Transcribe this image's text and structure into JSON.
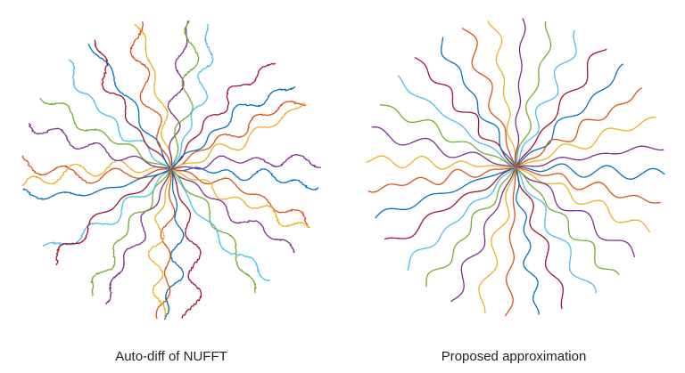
{
  "colors": [
    "#0072BD",
    "#D95319",
    "#EDB120",
    "#7E2F8E",
    "#77AC30",
    "#4DBEEE",
    "#A2142F"
  ],
  "panels": [
    {
      "caption": "Auto-diff of NUFFT",
      "spokes": 32,
      "distorted": true
    },
    {
      "caption": "Proposed approximation",
      "spokes": 32,
      "distorted": false
    }
  ]
}
